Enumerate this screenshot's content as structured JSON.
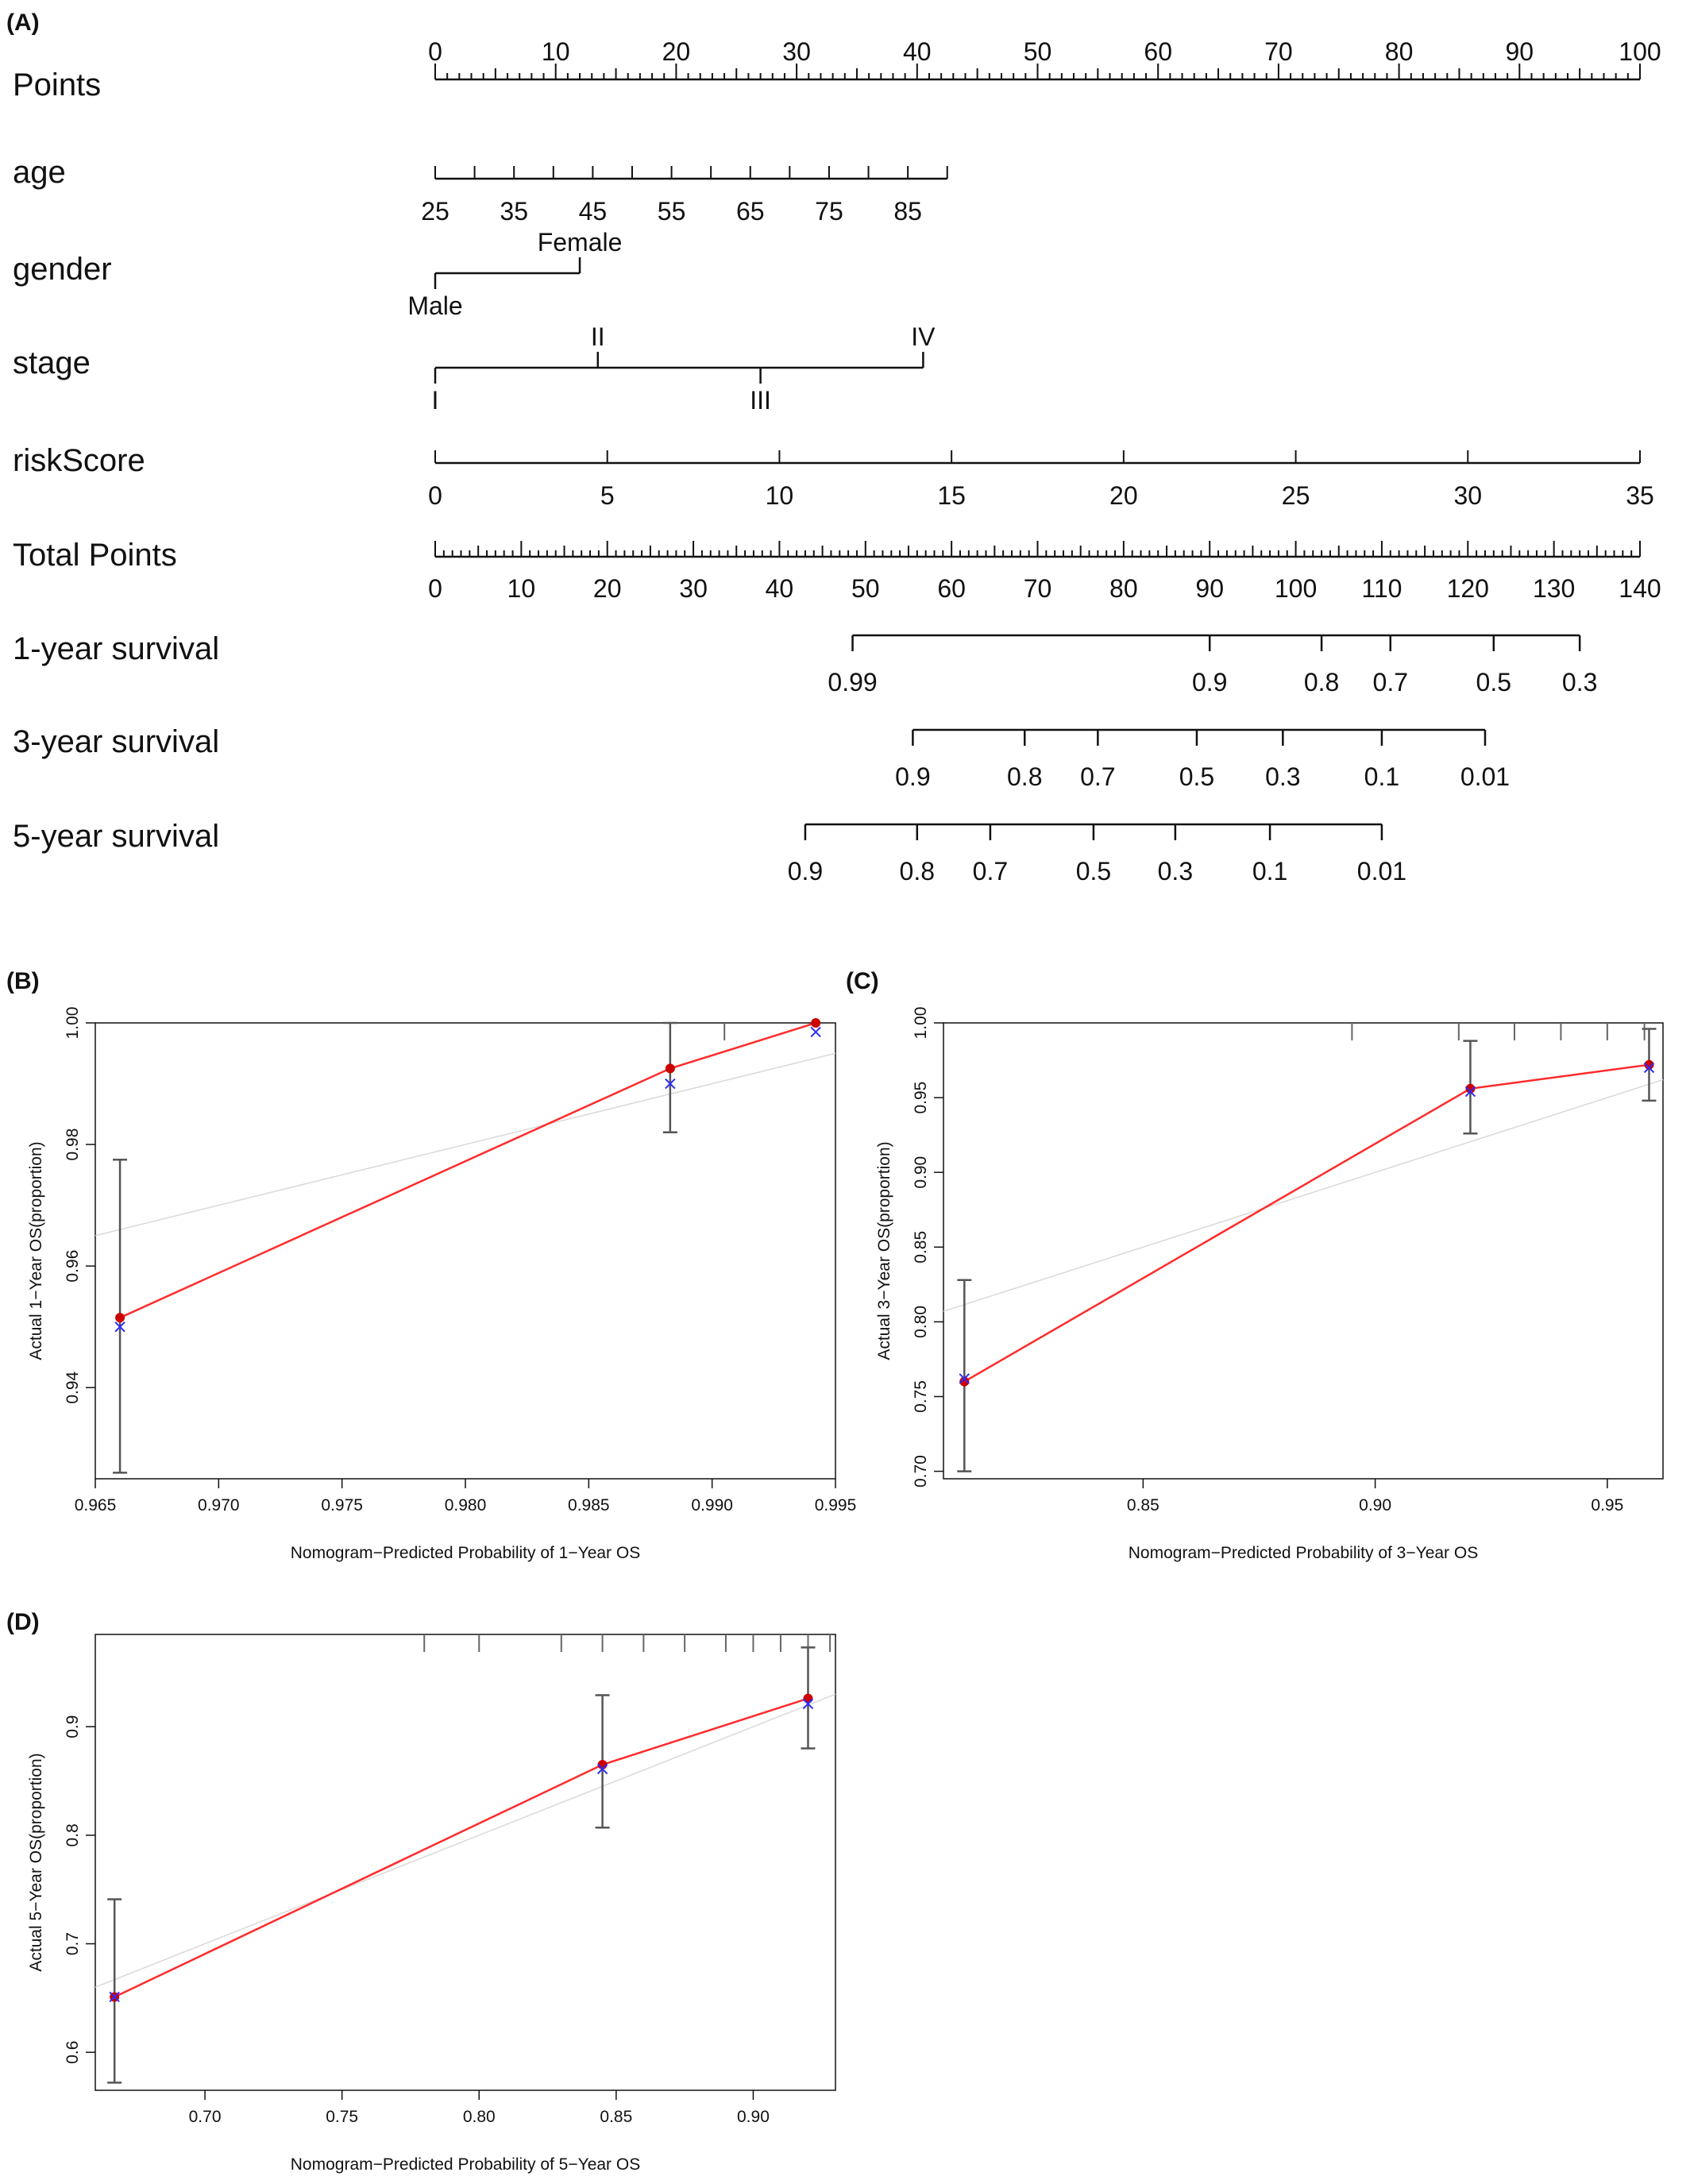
{
  "chart_data": [
    {
      "panel": "(A)",
      "type": "nomogram",
      "rows": [
        {
          "label": "Points",
          "kind": "points",
          "range": [
            0,
            100
          ],
          "major_labels": [
            0,
            10,
            20,
            30,
            40,
            50,
            60,
            70,
            80,
            90,
            100
          ]
        },
        {
          "label": "age",
          "kind": "variable",
          "labels": [
            "25",
            "35",
            "45",
            "55",
            "65",
            "75",
            "85"
          ],
          "values": [
            25,
            35,
            45,
            55,
            65,
            75,
            85
          ],
          "axis_max_value": 90,
          "points_at_max": 42.5
        },
        {
          "label": "gender",
          "kind": "categorical",
          "levels": [
            {
              "name": "Male",
              "points": 0
            },
            {
              "name": "Female",
              "points": 12
            }
          ]
        },
        {
          "label": "stage",
          "kind": "categorical",
          "levels": [
            {
              "name": "I",
              "points": 0
            },
            {
              "name": "II",
              "points": 13.5
            },
            {
              "name": "III",
              "points": 27
            },
            {
              "name": "IV",
              "points": 40.5
            }
          ]
        },
        {
          "label": "riskScore",
          "kind": "variable",
          "labels": [
            "0",
            "5",
            "10",
            "15",
            "20",
            "25",
            "30",
            "35"
          ],
          "values": [
            0,
            5,
            10,
            15,
            20,
            25,
            30,
            35
          ],
          "axis_max_value": 35,
          "points_at_max": 100
        },
        {
          "label": "Total Points",
          "kind": "total",
          "range": [
            0,
            140
          ],
          "major_labels": [
            0,
            10,
            20,
            30,
            40,
            50,
            60,
            70,
            80,
            90,
            100,
            110,
            120,
            130,
            140
          ]
        },
        {
          "label": "1-year survival",
          "kind": "survival",
          "labels": [
            "0.99",
            "0.9",
            "0.8",
            "0.7",
            "0.5",
            "0.3"
          ],
          "total_points": [
            48.5,
            90,
            103,
            111,
            123,
            133
          ]
        },
        {
          "label": "3-year survival",
          "kind": "survival",
          "labels": [
            "0.9",
            "0.8",
            "0.7",
            "0.5",
            "0.3",
            "0.1",
            "0.01"
          ],
          "total_points": [
            55.5,
            68.5,
            77,
            88.5,
            98.5,
            110,
            122
          ]
        },
        {
          "label": "5-year survival",
          "kind": "survival",
          "labels": [
            "0.9",
            "0.8",
            "0.7",
            "0.5",
            "0.3",
            "0.1",
            "0.01"
          ],
          "total_points": [
            43,
            56,
            64.5,
            76.5,
            86,
            97,
            110
          ]
        }
      ]
    },
    {
      "panel": "(B)",
      "type": "scatter",
      "xlabel": "Nomogram−Predicted Probability of 1−Year OS",
      "ylabel": "Actual 1−Year OS(proportion)",
      "xlim": [
        0.965,
        0.995
      ],
      "ylim": [
        0.925,
        1.0
      ],
      "xticks": [
        0.965,
        0.97,
        0.975,
        0.98,
        0.985,
        0.99,
        0.995
      ],
      "xtick_labels": [
        "0.965",
        "0.970",
        "0.975",
        "0.980",
        "0.985",
        "0.990",
        "0.995"
      ],
      "yticks": [
        0.94,
        0.96,
        0.98,
        1.0
      ],
      "ytick_labels": [
        "0.94",
        "0.96",
        "0.98",
        "1.00"
      ],
      "points": [
        {
          "x": 0.966,
          "observed": 0.9515,
          "corrected": 0.95,
          "lower": 0.926,
          "upper": 0.9775
        },
        {
          "x": 0.9883,
          "observed": 0.9925,
          "corrected": 0.99,
          "lower": 0.982,
          "upper": 1.0
        },
        {
          "x": 0.9942,
          "observed": 1.0,
          "corrected": 0.9985,
          "lower": null,
          "upper": null
        }
      ],
      "rug_x": [
        0.9905
      ],
      "ideal_line": true
    },
    {
      "panel": "(C)",
      "type": "scatter",
      "xlabel": "Nomogram−Predicted Probability of 3−Year OS",
      "ylabel": "Actual 3−Year OS(proportion)",
      "xlim": [
        0.807,
        0.962
      ],
      "ylim": [
        0.695,
        1.0
      ],
      "xticks": [
        0.85,
        0.9,
        0.95
      ],
      "xtick_labels": [
        "0.85",
        "0.90",
        "0.95"
      ],
      "yticks": [
        0.7,
        0.75,
        0.8,
        0.85,
        0.9,
        0.95,
        1.0
      ],
      "ytick_labels": [
        "0.70",
        "0.75",
        "0.80",
        "0.85",
        "0.90",
        "0.95",
        "1.00"
      ],
      "points": [
        {
          "x": 0.8115,
          "observed": 0.76,
          "corrected": 0.762,
          "lower": 0.7,
          "upper": 0.828
        },
        {
          "x": 0.9205,
          "observed": 0.956,
          "corrected": 0.954,
          "lower": 0.926,
          "upper": 0.988
        },
        {
          "x": 0.959,
          "observed": 0.972,
          "corrected": 0.97,
          "lower": 0.948,
          "upper": 0.996
        }
      ],
      "rug_x": [
        0.895,
        0.918,
        0.93,
        0.94,
        0.95,
        0.958
      ],
      "ideal_line": true
    },
    {
      "panel": "(D)",
      "type": "scatter",
      "xlabel": "Nomogram−Predicted Probability of 5−Year OS",
      "ylabel": "Actual 5−Year OS(proportion)",
      "xlim": [
        0.66,
        0.93
      ],
      "ylim": [
        0.565,
        0.985
      ],
      "xticks": [
        0.7,
        0.75,
        0.8,
        0.85,
        0.9
      ],
      "xtick_labels": [
        "0.70",
        "0.75",
        "0.80",
        "0.85",
        "0.90"
      ],
      "yticks": [
        0.6,
        0.7,
        0.8,
        0.9
      ],
      "ytick_labels": [
        "0.6",
        "0.7",
        "0.8",
        "0.9"
      ],
      "points": [
        {
          "x": 0.667,
          "observed": 0.651,
          "corrected": 0.651,
          "lower": 0.572,
          "upper": 0.741
        },
        {
          "x": 0.845,
          "observed": 0.865,
          "corrected": 0.861,
          "lower": 0.807,
          "upper": 0.929
        },
        {
          "x": 0.92,
          "observed": 0.926,
          "corrected": 0.921,
          "lower": 0.88,
          "upper": 0.973
        }
      ],
      "rug_x": [
        0.78,
        0.8,
        0.83,
        0.845,
        0.86,
        0.875,
        0.89,
        0.9,
        0.91,
        0.92,
        0.928
      ],
      "ideal_line": true
    }
  ],
  "colors": {
    "axis": "#111111",
    "fit_line": "#ff2b2b",
    "observed_point": "#cc0000",
    "corrected_point": "#2b2bff",
    "ideal_line": "#d9d9d9",
    "error_bar": "#555555",
    "rug": "#666666"
  }
}
